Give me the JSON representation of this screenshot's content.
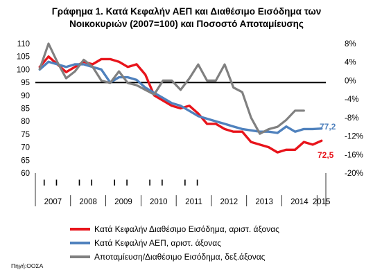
{
  "chart_data": {
    "type": "line",
    "title_lines": [
      "Γράφημα 1. Κατά Κεφαλήν ΑΕΠ και Διαθέσιμο Εισόδημα των",
      "Νοικοκυριών (2007=100)  και Ποσοστό Αποταμίευσης"
    ],
    "ylim_left": [
      60,
      110
    ],
    "left_ticks": [
      "110",
      "105",
      "100",
      "95",
      "90",
      "85",
      "80",
      "75",
      "70",
      "65",
      "60"
    ],
    "ylim_right": [
      -20,
      8
    ],
    "right_ticks": [
      "8%",
      "4%",
      "0%",
      "-4%",
      "-8%",
      "-12%",
      "-16%",
      "-20%"
    ],
    "quarter_labels": [
      "I",
      "I",
      "I",
      "I",
      "I",
      "I",
      "I",
      "I",
      "I",
      "I"
    ],
    "years": [
      "2007",
      "2008",
      "2009",
      "2010",
      "2011",
      "2012",
      "2013",
      "2014",
      "2015"
    ],
    "reference_line": 95,
    "x_start": "2007-Q1",
    "series": [
      {
        "name": "Κατά Κεφαλήν Διαθέσιμο Εισόδημα, αριστ. άξονας",
        "axis": "left",
        "color": "#e8141b",
        "values": [
          101,
          105,
          102,
          99,
          101,
          103,
          102,
          104,
          104,
          103,
          101,
          102,
          98,
          90,
          88,
          86,
          85,
          86,
          83,
          79,
          79,
          77,
          76,
          76,
          72,
          71,
          70,
          68,
          69,
          69,
          72,
          71,
          72.5
        ]
      },
      {
        "name": "Κατά Κεφαλήν ΑΕΠ, αριστ. άξονας",
        "axis": "left",
        "color": "#4f81bd",
        "values": [
          100,
          103,
          102,
          101,
          102,
          102,
          101,
          100,
          95,
          97,
          97,
          96,
          93,
          91,
          89,
          87,
          86,
          84,
          82,
          81,
          80,
          79,
          78,
          77,
          76.5,
          76,
          76,
          75.5,
          78,
          76,
          77,
          77,
          77.2
        ]
      },
      {
        "name": "Αποταμίευση/Διαθέσιμο Εισόδημα, δεξ.άξονας",
        "axis": "right",
        "color": "#808080",
        "values": [
          2.5,
          8,
          4,
          0.5,
          2,
          4.5,
          3,
          0,
          -0.5,
          2,
          -0.5,
          -1,
          -2,
          -3,
          0,
          0,
          -2,
          0.5,
          3.5,
          0,
          0,
          3.5,
          -1.5,
          -2.5,
          -8,
          -11.5,
          -10.5,
          -10,
          -8.5,
          -6.5,
          -6.5
        ]
      }
    ],
    "end_labels": [
      {
        "text": "77,2",
        "color": "#4f81bd"
      },
      {
        "text": "72,5",
        "color": "#e8141b"
      }
    ],
    "source": "Πηγή:ΟΟΣΑ"
  }
}
